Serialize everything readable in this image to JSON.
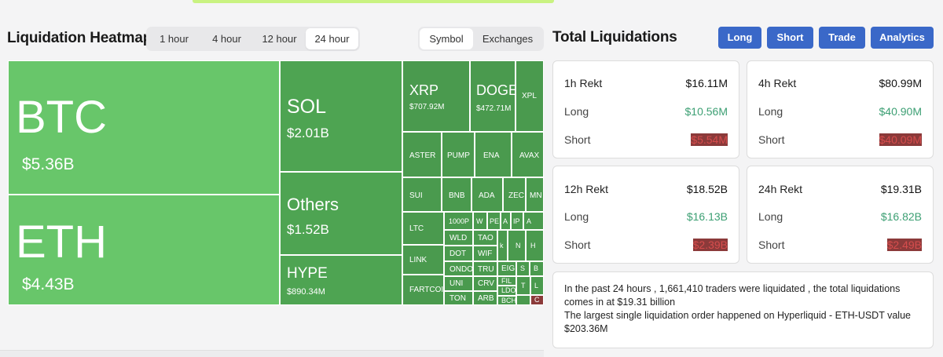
{
  "heatmap": {
    "title": "Liquidation Heatmap",
    "time_tabs": [
      "1 hour",
      "4 hour",
      "12 hour",
      "24 hour"
    ],
    "active_time_tab": "24 hour",
    "view_tabs": [
      "Symbol",
      "Exchanges"
    ],
    "active_view_tab": "Symbol",
    "tiles": {
      "btc": {
        "symbol": "BTC",
        "value": "$5.36B"
      },
      "eth": {
        "symbol": "ETH",
        "value": "$4.43B"
      },
      "sol": {
        "symbol": "SOL",
        "value": "$2.01B"
      },
      "others": {
        "symbol": "Others",
        "value": "$1.52B"
      },
      "hype": {
        "symbol": "HYPE",
        "value": "$890.34M"
      },
      "xrp": {
        "symbol": "XRP",
        "value": "$707.92M"
      },
      "doge": {
        "symbol": "DOGE",
        "value": "$472.71M"
      },
      "xpl": {
        "symbol": "XPL"
      },
      "aster": {
        "symbol": "ASTER"
      },
      "pump": {
        "symbol": "PUMP"
      },
      "ena": {
        "symbol": "ENA"
      },
      "avax": {
        "symbol": "AVAX"
      },
      "sui": {
        "symbol": "SUI"
      },
      "bnb": {
        "symbol": "BNB"
      },
      "ada": {
        "symbol": "ADA"
      },
      "zec": {
        "symbol": "ZEC"
      },
      "mnt": {
        "symbol": "MN"
      },
      "ltc": {
        "symbol": "LTC"
      },
      "link": {
        "symbol": "LINK"
      },
      "fartcoin": {
        "symbol": "FARTCOI"
      },
      "t1000": {
        "symbol": "1000P"
      },
      "wld": {
        "symbol": "WLD"
      },
      "dot": {
        "symbol": "DOT"
      },
      "ondo": {
        "symbol": "ONDO"
      },
      "uni": {
        "symbol": "UNI"
      },
      "ton": {
        "symbol": "TON"
      },
      "tao": {
        "symbol": "TAO"
      },
      "wif": {
        "symbol": "WIF"
      },
      "trump": {
        "symbol": "TRU"
      },
      "crv": {
        "symbol": "CRV"
      },
      "arb": {
        "symbol": "ARB"
      },
      "w": {
        "symbol": "W"
      },
      "pe": {
        "symbol": "PE"
      },
      "aa": {
        "symbol": "A"
      },
      "ip": {
        "symbol": "IP"
      },
      "a2": {
        "symbol": "A"
      },
      "k1": {
        "symbol": "k"
      },
      "eig": {
        "symbol": "EIG"
      },
      "fil": {
        "symbol": "FIL"
      },
      "ldo": {
        "symbol": "LDO"
      },
      "bch": {
        "symbol": "BCH"
      },
      "n1": {
        "symbol": "N"
      },
      "h1": {
        "symbol": "H"
      },
      "s1": {
        "symbol": "S"
      },
      "t1": {
        "symbol": "T"
      },
      "l1": {
        "symbol": "L"
      },
      "c1": {
        "symbol": "C"
      },
      "b1": {
        "symbol": "B"
      }
    }
  },
  "total": {
    "title": "Total Liquidations",
    "buttons": [
      "Long",
      "Short",
      "Trade",
      "Analytics"
    ],
    "cards": [
      {
        "head_label": "1h Rekt",
        "head_value": "$16.11M",
        "long_label": "Long",
        "long_value": "$10.56M",
        "short_label": "Short",
        "short_value": "$5.54M"
      },
      {
        "head_label": "4h Rekt",
        "head_value": "$80.99M",
        "long_label": "Long",
        "long_value": "$40.90M",
        "short_label": "Short",
        "short_value": "$40.09M"
      },
      {
        "head_label": "12h Rekt",
        "head_value": "$18.52B",
        "long_label": "Long",
        "long_value": "$16.13B",
        "short_label": "Short",
        "short_value": "$2.39B"
      },
      {
        "head_label": "24h Rekt",
        "head_value": "$19.31B",
        "long_label": "Long",
        "long_value": "$16.82B",
        "short_label": "Short",
        "short_value": "$2.49B"
      }
    ],
    "summary": {
      "line1": "In the past 24 hours , 1,661,410 traders were liquidated , the total liquidations comes in at $19.31 billion",
      "line2": "The largest single liquidation order happened on Hyperliquid - ETH-USDT value $203.36M"
    }
  },
  "colors": {
    "accent": "#3a68c8",
    "long_green": "#3c9f73",
    "short_red": "#d64d4d",
    "tile_green": "#68c66a"
  }
}
